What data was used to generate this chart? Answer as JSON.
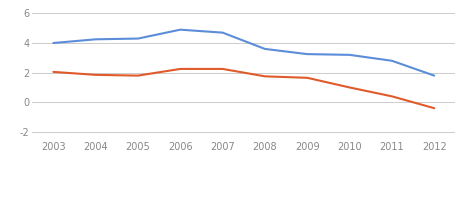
{
  "nominal_x": [
    2003,
    2004,
    2005,
    2006,
    2007,
    2008,
    2009,
    2010,
    2011,
    2012
  ],
  "nominal_y": [
    4.0,
    4.25,
    4.3,
    4.9,
    4.7,
    3.6,
    3.25,
    3.2,
    2.8,
    1.8
  ],
  "real_x": [
    2003,
    2004,
    2005,
    2006,
    2007,
    2008,
    2009,
    2010,
    2011,
    2012
  ],
  "real_y": [
    2.05,
    1.85,
    1.8,
    2.25,
    2.25,
    1.75,
    1.65,
    1.0,
    0.4,
    -0.4
  ],
  "nominal_color": "#5b8dd9",
  "real_color": "#e05a2b",
  "background_color": "#ffffff",
  "grid_color": "#cccccc",
  "yticks": [
    -2,
    0,
    2,
    4,
    6
  ],
  "xticks": [
    2003,
    2004,
    2005,
    2006,
    2007,
    2008,
    2009,
    2010,
    2011,
    2012
  ],
  "ylim": [
    -2.5,
    6.5
  ],
  "xlim": [
    2002.5,
    2012.5
  ],
  "legend_fontsize": 8.5,
  "tick_fontsize": 7
}
